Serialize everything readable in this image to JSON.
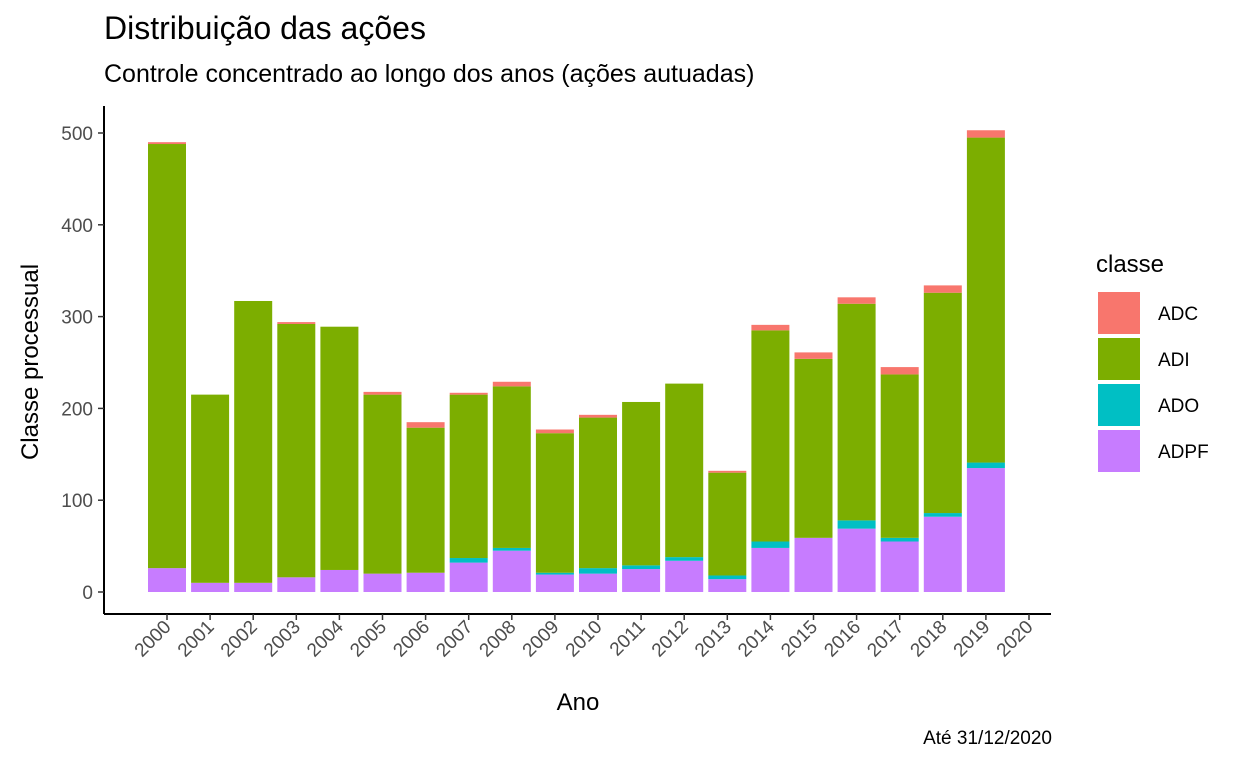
{
  "chart_data": {
    "type": "bar",
    "stacked": true,
    "title": "Distribuição das ações",
    "subtitle": "Controle concentrado ao longo dos anos (ações autuadas)",
    "caption": "Até 31/12/2020",
    "xlabel": "Ano",
    "ylabel": "Classe processual",
    "ylim": [
      0,
      530
    ],
    "yticks": [
      0,
      100,
      200,
      300,
      400,
      500
    ],
    "categories": [
      "2000",
      "2001",
      "2002",
      "2003",
      "2004",
      "2005",
      "2006",
      "2007",
      "2008",
      "2009",
      "2010",
      "2011",
      "2012",
      "2013",
      "2014",
      "2015",
      "2016",
      "2017",
      "2018",
      "2019",
      "2020"
    ],
    "legend": {
      "title": "classe",
      "position": "right"
    },
    "series": [
      {
        "name": "ADPF",
        "color": "#C77CFF",
        "values": [
          26,
          10,
          10,
          16,
          24,
          20,
          21,
          32,
          45,
          19,
          20,
          25,
          34,
          14,
          48,
          59,
          69,
          55,
          82,
          135,
          0
        ]
      },
      {
        "name": "ADO",
        "color": "#00BFC4",
        "values": [
          0,
          0,
          0,
          0,
          0,
          0,
          0,
          5,
          3,
          2,
          6,
          4,
          4,
          4,
          7,
          0,
          9,
          4,
          4,
          6,
          0
        ]
      },
      {
        "name": "ADI",
        "color": "#7CAE00",
        "values": [
          462,
          205,
          307,
          276,
          265,
          195,
          158,
          178,
          176,
          152,
          164,
          178,
          189,
          112,
          230,
          195,
          236,
          178,
          240,
          354,
          0
        ]
      },
      {
        "name": "ADC",
        "color": "#F8766D",
        "values": [
          2,
          0,
          0,
          2,
          0,
          3,
          6,
          2,
          5,
          4,
          3,
          0,
          0,
          2,
          6,
          7,
          7,
          8,
          8,
          8,
          0
        ]
      }
    ],
    "legend_order": [
      "ADC",
      "ADI",
      "ADO",
      "ADPF"
    ],
    "grid": false
  }
}
